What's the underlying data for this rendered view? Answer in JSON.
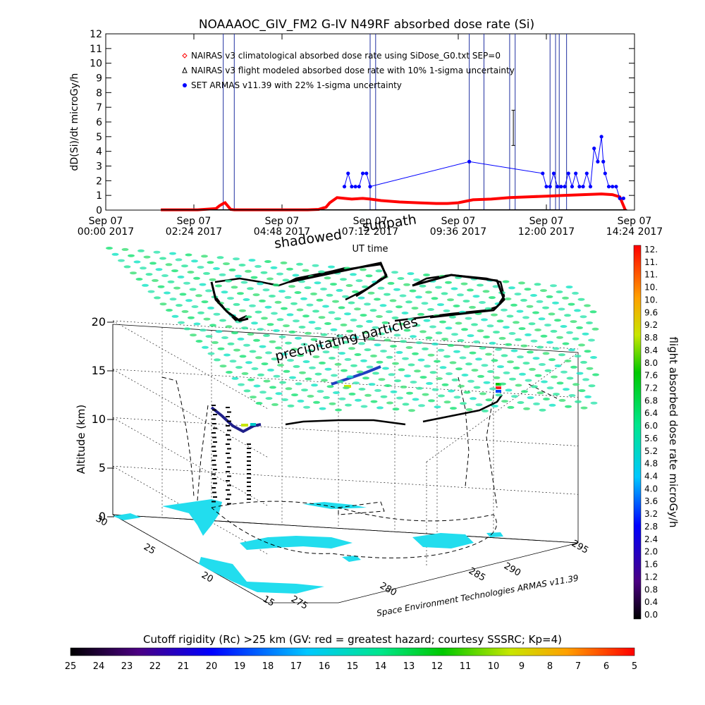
{
  "title": "NOAAAOC_GIV_FM2 G-IV    N49RF   absorbed dose rate (Si)",
  "top_chart": {
    "ylabel": "dD(Si)/dt microGy/h",
    "xlabel": "UT time",
    "legend": [
      {
        "marker": "diamond",
        "color": "#ff0000",
        "text": "NAIRAS v3 climatological absorbed dose rate using SiDose_G0.txt SEP=0"
      },
      {
        "marker": "triangle",
        "color": "#000000",
        "text": "NAIRAS v3 flight modeled absorbed dose rate with 10% 1-sigma uncertainty"
      },
      {
        "marker": "dot",
        "color": "#0000ff",
        "text": "SET ARMAS v11.39 with 22% 1-sigma uncertainty"
      }
    ],
    "x_ticks": [
      {
        "line1": "Sep 07",
        "line2": "00:00 2017"
      },
      {
        "line1": "Sep 07",
        "line2": "02:24 2017"
      },
      {
        "line1": "Sep 07",
        "line2": "04:48 2017"
      },
      {
        "line1": "Sep 07",
        "line2": "07:12 2017"
      },
      {
        "line1": "Sep 07",
        "line2": "09:36 2017"
      },
      {
        "line1": "Sep 07",
        "line2": "12:00 2017"
      },
      {
        "line1": "Sep 07",
        "line2": "14:24 2017"
      }
    ],
    "y_ticks": [
      "0",
      "1",
      "2",
      "3",
      "4",
      "5",
      "6",
      "7",
      "8",
      "9",
      "10",
      "11",
      "12"
    ]
  },
  "chart_data": [
    {
      "type": "line",
      "title": "NOAAAOC_GIV_FM2 G-IV    N49RF   absorbed dose rate (Si)",
      "xlabel": "UT time",
      "ylabel": "dD(Si)/dt microGy/h",
      "x_unit": "hours UT (Sep 07 2017)",
      "xlim": [
        0,
        14.4
      ],
      "ylim": [
        0,
        12
      ],
      "legend_position": "top-left",
      "series": [
        {
          "name": "NAIRAS v3 climatological absorbed dose rate using SiDose_G0.txt SEP=0",
          "color": "#ff0000",
          "x": [
            1.5,
            2.0,
            2.5,
            3.0,
            3.1,
            3.2,
            3.25,
            3.3,
            3.4,
            3.5,
            4.0,
            4.5,
            5.0,
            5.5,
            5.8,
            6.0,
            6.1,
            6.3,
            6.5,
            6.7,
            7.0,
            7.2,
            7.5,
            8.0,
            8.5,
            9.0,
            9.3,
            9.6,
            9.8,
            10.0,
            10.5,
            11.0,
            11.5,
            12.0,
            12.5,
            13.0,
            13.5,
            13.8,
            14.0,
            14.1,
            14.15
          ],
          "y": [
            0.02,
            0.02,
            0.02,
            0.1,
            0.3,
            0.45,
            0.5,
            0.35,
            0.05,
            0.02,
            0.02,
            0.02,
            0.02,
            0.02,
            0.05,
            0.2,
            0.5,
            0.85,
            0.8,
            0.75,
            0.8,
            0.75,
            0.65,
            0.55,
            0.5,
            0.45,
            0.45,
            0.5,
            0.6,
            0.7,
            0.75,
            0.85,
            0.9,
            0.95,
            1.0,
            1.05,
            1.1,
            1.05,
            0.9,
            0.3,
            0.0
          ]
        },
        {
          "name": "NAIRAS v3 flight modeled absorbed dose rate with 10% 1-sigma uncertainty",
          "color": "#000000",
          "x": [
            1.5,
            3.0,
            4.5,
            6.0,
            7.5,
            9.0,
            10.5,
            12.0,
            13.5,
            14.2
          ],
          "y": [
            0.02,
            0.02,
            0.02,
            0.02,
            0.02,
            0.02,
            0.02,
            0.02,
            0.02,
            0.02
          ]
        },
        {
          "name": "SET ARMAS v11.39 with 22% 1-sigma uncertainty",
          "color": "#0000ff",
          "x": [
            6.5,
            6.6,
            6.7,
            6.8,
            6.9,
            7.0,
            7.1,
            7.2,
            9.9,
            11.9,
            12.0,
            12.1,
            12.2,
            12.3,
            12.4,
            12.5,
            12.6,
            12.7,
            12.8,
            12.9,
            13.0,
            13.1,
            13.2,
            13.3,
            13.4,
            13.5,
            13.55,
            13.6,
            13.7,
            13.8,
            13.9,
            14.0,
            14.1
          ],
          "y": [
            1.6,
            2.5,
            1.6,
            1.6,
            1.6,
            2.5,
            2.5,
            1.6,
            3.3,
            2.5,
            1.6,
            1.6,
            2.5,
            1.6,
            1.6,
            1.6,
            2.5,
            1.6,
            2.5,
            1.6,
            1.6,
            2.5,
            1.6,
            4.2,
            3.3,
            5.0,
            3.3,
            2.5,
            1.6,
            1.6,
            1.6,
            0.8,
            0.8
          ]
        }
      ]
    },
    {
      "type": "scatter",
      "title": "",
      "zlabel": "Altitude (km)",
      "x_ticks": [
        "275",
        "280",
        "285",
        "290",
        "295"
      ],
      "y_ticks": [
        "15",
        "20",
        "25",
        "30"
      ],
      "z_ticks": [
        "0",
        "5",
        "10",
        "15",
        "20"
      ],
      "zlim": [
        0,
        20
      ],
      "annotations": [
        "shadowed",
        "sunpath",
        "precipitating particles"
      ],
      "credit": "Space Environment Technologies ARMAS v11.39"
    },
    {
      "type": "heatmap",
      "title": "flight absorbed dose rate microGy/h",
      "colorbar": [
        "0.0",
        "0.4",
        "0.8",
        "1.2",
        "1.6",
        "2.0",
        "2.4",
        "2.8",
        "3.2",
        "3.6",
        "4.0",
        "4.4",
        "4.8",
        "5.2",
        "5.6",
        "6.0",
        "6.4",
        "6.8",
        "7.2",
        "7.6",
        "8.0",
        "8.4",
        "8.8",
        "9.2",
        "9.6",
        "10.",
        "10.",
        "11.",
        "11.",
        "12."
      ],
      "range": [
        0,
        12
      ]
    },
    {
      "type": "heatmap",
      "title": "Cutoff rigidity (Rc) >25 km (GV: red = greatest hazard; courtesy SSSRC; Kp=4)",
      "colorbar": [
        "25",
        "24",
        "23",
        "22",
        "21",
        "20",
        "19",
        "18",
        "17",
        "16",
        "15",
        "14",
        "13",
        "12",
        "11",
        "10",
        "9",
        "8",
        "7",
        "6",
        "5"
      ],
      "range": [
        25,
        5
      ]
    }
  ],
  "annotations": {
    "shadowed": "shadowed",
    "sunpath": "sunpath",
    "precip": "precipitating particles",
    "credit": "Space Environment Technologies ARMAS v11.39",
    "alt_label": "Altitude (km)"
  },
  "right_colorbar": {
    "label": "flight absorbed dose rate microGy/h",
    "ticks": [
      "0.0",
      "0.4",
      "0.8",
      "1.2",
      "1.6",
      "2.0",
      "2.4",
      "2.8",
      "3.2",
      "3.6",
      "4.0",
      "4.4",
      "4.8",
      "5.2",
      "5.6",
      "6.0",
      "6.4",
      "6.8",
      "7.2",
      "7.6",
      "8.0",
      "8.4",
      "8.8",
      "9.2",
      "9.6",
      "10.",
      "10.",
      "11.",
      "11.",
      "12."
    ]
  },
  "bottom_colorbar": {
    "title": "Cutoff rigidity (Rc) >25 km (GV: red = greatest hazard; courtesy SSSRC; Kp=4)",
    "ticks": [
      "25",
      "24",
      "23",
      "22",
      "21",
      "20",
      "19",
      "18",
      "17",
      "16",
      "15",
      "14",
      "13",
      "12",
      "11",
      "10",
      "9",
      "8",
      "7",
      "6",
      "5"
    ]
  },
  "box3d": {
    "z_ticks": [
      "0",
      "5",
      "10",
      "15",
      "20"
    ],
    "lon_ticks": [
      "275",
      "280",
      "285",
      "290",
      "295"
    ],
    "lat_ticks": [
      "15",
      "20",
      "25",
      "30"
    ]
  }
}
